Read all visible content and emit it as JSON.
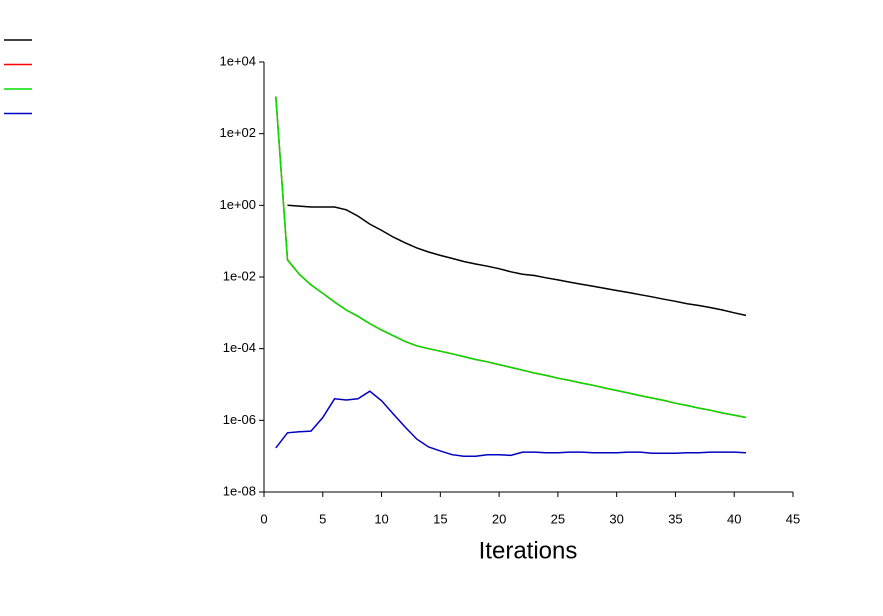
{
  "chart_data": {
    "type": "line",
    "x_label": "Iterations",
    "yscale": "log",
    "x": [
      1,
      2,
      3,
      4,
      5,
      6,
      7,
      8,
      9,
      10,
      11,
      12,
      13,
      14,
      15,
      16,
      17,
      18,
      19,
      20,
      21,
      22,
      23,
      24,
      25,
      26,
      27,
      28,
      29,
      30,
      31,
      32,
      33,
      34,
      35,
      36,
      37,
      38,
      39,
      40,
      41
    ],
    "series": [
      {
        "color": "#000000",
        "values": [
          null,
          1.0,
          0.95,
          0.9,
          0.9,
          0.9,
          0.75,
          0.5,
          0.3,
          0.2,
          0.13,
          0.09,
          0.065,
          0.05,
          0.04,
          0.033,
          0.027,
          0.023,
          0.02,
          0.017,
          0.014,
          0.012,
          0.011,
          0.0095,
          0.0083,
          0.0072,
          0.0063,
          0.0055,
          0.0048,
          0.0042,
          0.0037,
          0.0032,
          0.0028,
          0.0024,
          0.0021,
          0.0018,
          0.0016,
          0.0014,
          0.0012,
          0.001,
          0.00085
        ]
      },
      {
        "color": "#ff0000",
        "values": [
          1100,
          0.03,
          0.012,
          0.006,
          0.0035,
          0.002,
          0.0012,
          0.0008,
          0.0005,
          0.00033,
          0.00023,
          0.00016,
          0.00012,
          0.0001,
          8.5e-05,
          7.2e-05,
          6e-05,
          5e-05,
          4.3e-05,
          3.6e-05,
          3e-05,
          2.5e-05,
          2.1e-05,
          1.8e-05,
          1.5e-05,
          1.3e-05,
          1.1e-05,
          9.5e-06,
          8e-06,
          6.8e-06,
          5.8e-06,
          4.9e-06,
          4.2e-06,
          3.6e-06,
          3e-06,
          2.6e-06,
          2.2e-06,
          1.9e-06,
          1.6e-06,
          1.4e-06,
          1.2e-06
        ]
      },
      {
        "color": "#00e000",
        "values": [
          1100,
          0.03,
          0.012,
          0.006,
          0.0035,
          0.002,
          0.0012,
          0.0008,
          0.0005,
          0.00033,
          0.00023,
          0.00016,
          0.00012,
          0.0001,
          8.5e-05,
          7.2e-05,
          6e-05,
          5e-05,
          4.3e-05,
          3.6e-05,
          3e-05,
          2.5e-05,
          2.1e-05,
          1.8e-05,
          1.5e-05,
          1.3e-05,
          1.1e-05,
          9.5e-06,
          8e-06,
          6.8e-06,
          5.8e-06,
          4.9e-06,
          4.2e-06,
          3.6e-06,
          3e-06,
          2.6e-06,
          2.2e-06,
          1.9e-06,
          1.6e-06,
          1.4e-06,
          1.2e-06
        ]
      },
      {
        "color": "#0000c0",
        "values": [
          1.7e-07,
          4.5e-07,
          4.8e-07,
          5e-07,
          1.2e-06,
          4e-06,
          3.7e-06,
          4e-06,
          6.5e-06,
          3.5e-06,
          1.5e-06,
          6.5e-07,
          3e-07,
          1.8e-07,
          1.4e-07,
          1.1e-07,
          1e-07,
          1e-07,
          1.1e-07,
          1.1e-07,
          1.05e-07,
          1.3e-07,
          1.3e-07,
          1.25e-07,
          1.25e-07,
          1.3e-07,
          1.3e-07,
          1.25e-07,
          1.25e-07,
          1.25e-07,
          1.3e-07,
          1.3e-07,
          1.2e-07,
          1.2e-07,
          1.2e-07,
          1.25e-07,
          1.25e-07,
          1.3e-07,
          1.3e-07,
          1.3e-07,
          1.25e-07
        ]
      }
    ],
    "xlim": [
      0,
      45
    ],
    "xticks": [
      0,
      5,
      10,
      15,
      20,
      25,
      30,
      35,
      40,
      45
    ],
    "ylim": [
      1e-08,
      10000
    ],
    "yticks": [
      {
        "value": 1e-08,
        "label": "1e-08"
      },
      {
        "value": 1e-06,
        "label": "1e-06"
      },
      {
        "value": 0.0001,
        "label": "1e-04"
      },
      {
        "value": 0.01,
        "label": "1e-02"
      },
      {
        "value": 1,
        "label": "1e+00"
      },
      {
        "value": 100,
        "label": "1e+02"
      },
      {
        "value": 10000,
        "label": "1e+04"
      }
    ]
  }
}
